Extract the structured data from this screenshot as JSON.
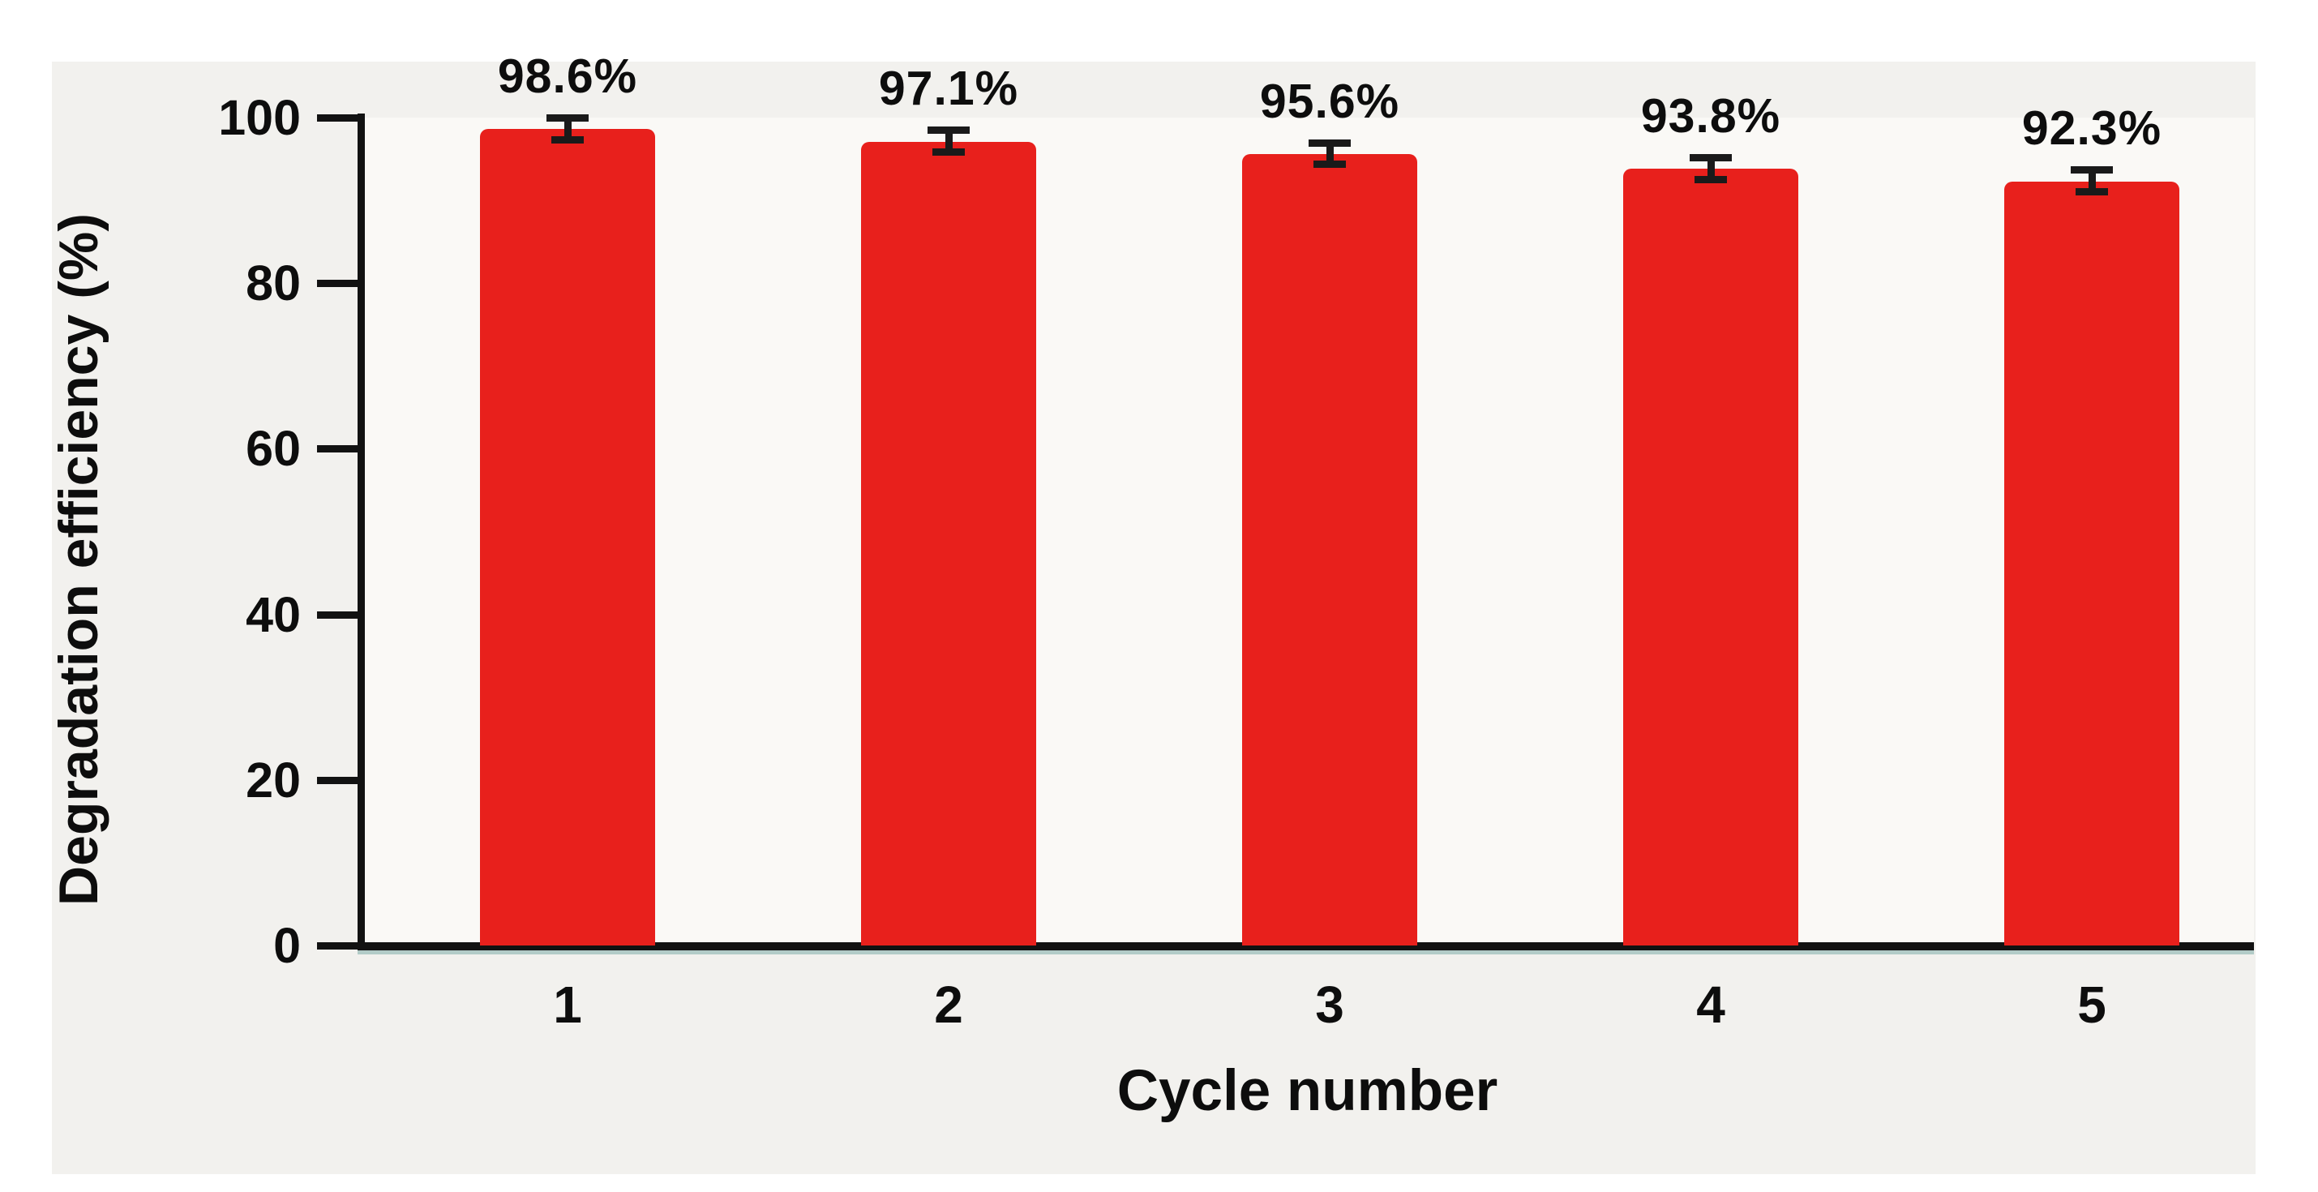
{
  "chart_data": {
    "type": "bar",
    "title": "",
    "categories": [
      "1",
      "2",
      "3",
      "4",
      "5"
    ],
    "values": [
      98.6,
      97.1,
      95.6,
      93.8,
      92.3
    ],
    "value_labels": [
      "98.6%",
      "97.1%",
      "95.6%",
      "93.8%",
      "92.3%"
    ],
    "errors": [
      1.0,
      1.0,
      1.0,
      1.0,
      1.0
    ],
    "xlabel": "Cycle number",
    "ylabel": "Degradation efficiency (%)",
    "yticks": [
      0,
      20,
      40,
      60,
      80,
      100
    ],
    "ylim": [
      0,
      100
    ],
    "grid": false,
    "legend": null,
    "colors": {
      "bar": "#e8201c",
      "axis": "#121212",
      "text": "#0d0d0d",
      "figure_background": "#f2f1ee",
      "plot_background": "#faf9f6",
      "baseline_shadow": "#8fb7b2"
    }
  }
}
